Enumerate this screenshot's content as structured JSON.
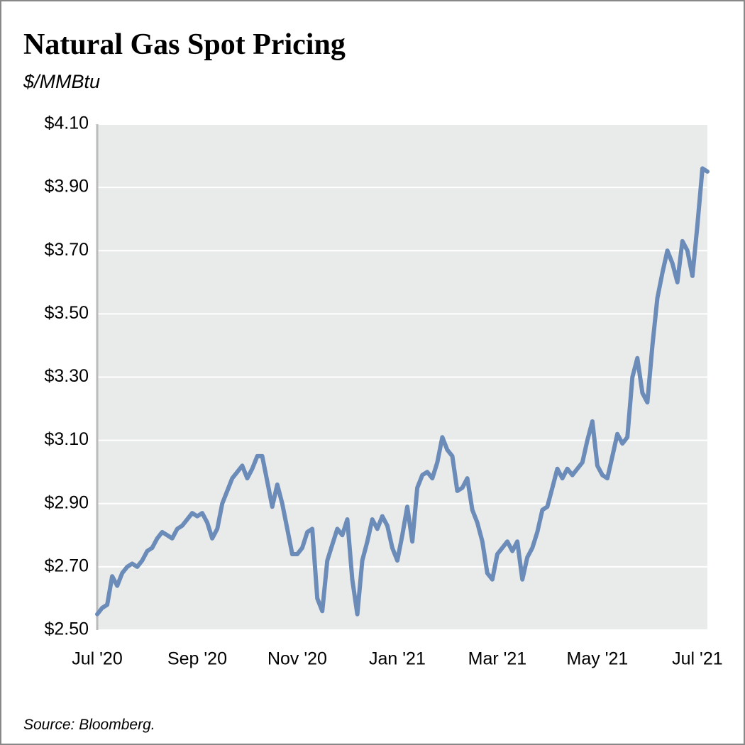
{
  "chart_data": {
    "type": "line",
    "title": "Natural Gas Spot Pricing",
    "subtitle": "$/MMBtu",
    "source": "Source: Bloomberg.",
    "color": "#6b8cb9",
    "grid": true,
    "categories": [
      "Jul '20",
      null,
      null,
      null,
      null,
      null,
      null,
      null,
      null,
      null,
      null,
      null,
      null,
      null,
      null,
      null,
      null,
      null,
      null,
      null,
      "Sep '20",
      null,
      null,
      null,
      null,
      null,
      null,
      null,
      null,
      null,
      null,
      null,
      null,
      null,
      null,
      null,
      null,
      null,
      null,
      null,
      "Nov '20",
      null,
      null,
      null,
      null,
      null,
      null,
      null,
      null,
      null,
      null,
      null,
      null,
      null,
      null,
      null,
      null,
      null,
      null,
      null,
      "Jan '21",
      null,
      null,
      null,
      null,
      null,
      null,
      null,
      null,
      null,
      null,
      null,
      null,
      null,
      null,
      null,
      null,
      null,
      null,
      null,
      "Mar '21",
      null,
      null,
      null,
      null,
      null,
      null,
      null,
      null,
      null,
      null,
      null,
      null,
      null,
      null,
      null,
      null,
      null,
      null,
      null,
      "May '21",
      null,
      null,
      null,
      null,
      null,
      null,
      null,
      null,
      null,
      null,
      null,
      null,
      null,
      null,
      null,
      null,
      null,
      null,
      null,
      "Jul '21",
      null,
      null
    ],
    "values": [
      2.55,
      2.57,
      2.58,
      2.67,
      2.64,
      2.68,
      2.7,
      2.71,
      2.7,
      2.72,
      2.75,
      2.76,
      2.79,
      2.81,
      2.8,
      2.79,
      2.82,
      2.83,
      2.85,
      2.87,
      2.86,
      2.87,
      2.84,
      2.79,
      2.82,
      2.9,
      2.94,
      2.98,
      3.0,
      3.02,
      2.98,
      3.01,
      3.05,
      3.05,
      2.97,
      2.89,
      2.96,
      2.9,
      2.82,
      2.74,
      2.74,
      2.76,
      2.81,
      2.82,
      2.6,
      2.56,
      2.72,
      2.77,
      2.82,
      2.8,
      2.85,
      2.66,
      2.55,
      2.72,
      2.78,
      2.85,
      2.82,
      2.86,
      2.83,
      2.76,
      2.72,
      2.8,
      2.89,
      2.78,
      2.95,
      2.99,
      3.0,
      2.98,
      3.03,
      3.11,
      3.07,
      3.05,
      2.94,
      2.95,
      2.98,
      2.88,
      2.84,
      2.78,
      2.68,
      2.66,
      2.74,
      2.76,
      2.78,
      2.75,
      2.78,
      2.66,
      2.73,
      2.76,
      2.81,
      2.88,
      2.89,
      2.95,
      3.01,
      2.98,
      3.01,
      2.99,
      3.01,
      3.03,
      3.1,
      3.16,
      3.02,
      2.99,
      2.98,
      3.05,
      3.12,
      3.09,
      3.11,
      3.3,
      3.36,
      3.25,
      3.22,
      3.4,
      3.55,
      3.63,
      3.7,
      3.66,
      3.6,
      3.73,
      3.7,
      3.62,
      3.78,
      3.96,
      3.95
    ],
    "ylim": [
      2.5,
      4.1
    ],
    "yticks": [
      {
        "value": 2.5,
        "label": "$2.50"
      },
      {
        "value": 2.7,
        "label": "$2.70"
      },
      {
        "value": 2.9,
        "label": "$2.90"
      },
      {
        "value": 3.1,
        "label": "$3.10"
      },
      {
        "value": 3.3,
        "label": "$3.30"
      },
      {
        "value": 3.5,
        "label": "$3.50"
      },
      {
        "value": 3.7,
        "label": "$3.70"
      },
      {
        "value": 3.9,
        "label": "$3.90"
      },
      {
        "value": 4.1,
        "label": "$4.10"
      }
    ]
  }
}
